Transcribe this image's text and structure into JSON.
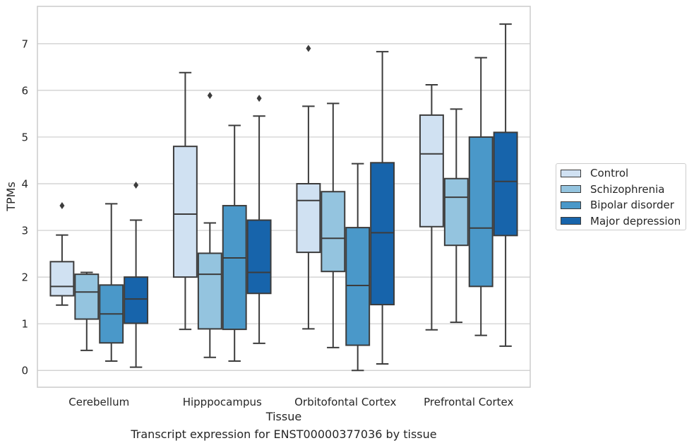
{
  "chart_data": {
    "type": "boxplot",
    "caption": "Transcript expression for ENST00000377036 by tissue",
    "xlabel": "Tissue",
    "ylabel": "TPMs",
    "ylim": [
      -0.36,
      7.8
    ],
    "yticks": [
      0,
      1,
      2,
      3,
      4,
      5,
      6,
      7
    ],
    "grid": true,
    "legend_position": "right",
    "categories": [
      "Cerebellum",
      "Hipppocampus",
      "Orbitofontal Cortex",
      "Prefrontal Cortex"
    ],
    "series": [
      {
        "name": "Control",
        "color": "#d0e1f2",
        "boxes": [
          {
            "whisker_low": 1.4,
            "q1": 1.6,
            "median": 1.8,
            "q3": 2.33,
            "whisker_high": 2.9,
            "outliers": [
              3.53
            ]
          },
          {
            "whisker_low": 0.88,
            "q1": 2.0,
            "median": 3.35,
            "q3": 4.8,
            "whisker_high": 6.38,
            "outliers": []
          },
          {
            "whisker_low": 0.89,
            "q1": 2.53,
            "median": 3.64,
            "q3": 4.0,
            "whisker_high": 5.66,
            "outliers": [
              6.9
            ]
          },
          {
            "whisker_low": 0.87,
            "q1": 3.08,
            "median": 4.64,
            "q3": 5.47,
            "whisker_high": 6.12,
            "outliers": []
          }
        ]
      },
      {
        "name": "Schizophrenia",
        "color": "#94c4df",
        "boxes": [
          {
            "whisker_low": 0.43,
            "q1": 1.1,
            "median": 1.68,
            "q3": 2.06,
            "whisker_high": 2.1,
            "outliers": []
          },
          {
            "whisker_low": 0.28,
            "q1": 0.89,
            "median": 2.06,
            "q3": 2.51,
            "whisker_high": 3.16,
            "outliers": [
              5.89
            ]
          },
          {
            "whisker_low": 0.49,
            "q1": 2.12,
            "median": 2.83,
            "q3": 3.83,
            "whisker_high": 5.72,
            "outliers": []
          },
          {
            "whisker_low": 1.03,
            "q1": 2.68,
            "median": 3.71,
            "q3": 4.11,
            "whisker_high": 5.6,
            "outliers": []
          }
        ]
      },
      {
        "name": "Bipolar disorder",
        "color": "#4a98c9",
        "boxes": [
          {
            "whisker_low": 0.2,
            "q1": 0.59,
            "median": 1.21,
            "q3": 1.83,
            "whisker_high": 3.57,
            "outliers": []
          },
          {
            "whisker_low": 0.2,
            "q1": 0.88,
            "median": 2.41,
            "q3": 3.53,
            "whisker_high": 5.25,
            "outliers": []
          },
          {
            "whisker_low": 0.0,
            "q1": 0.54,
            "median": 1.82,
            "q3": 3.06,
            "whisker_high": 4.43,
            "outliers": []
          },
          {
            "whisker_low": 0.75,
            "q1": 1.8,
            "median": 3.05,
            "q3": 5.0,
            "whisker_high": 6.7,
            "outliers": []
          }
        ]
      },
      {
        "name": "Major depression",
        "color": "#1764ab",
        "boxes": [
          {
            "whisker_low": 0.07,
            "q1": 1.01,
            "median": 1.53,
            "q3": 2.0,
            "whisker_high": 3.22,
            "outliers": [
              3.97
            ]
          },
          {
            "whisker_low": 0.58,
            "q1": 1.65,
            "median": 2.1,
            "q3": 3.22,
            "whisker_high": 5.45,
            "outliers": [
              5.83
            ]
          },
          {
            "whisker_low": 0.14,
            "q1": 1.41,
            "median": 2.95,
            "q3": 4.45,
            "whisker_high": 6.83,
            "outliers": []
          },
          {
            "whisker_low": 0.52,
            "q1": 2.89,
            "median": 4.05,
            "q3": 5.1,
            "whisker_high": 7.42,
            "outliers": []
          }
        ]
      }
    ]
  }
}
